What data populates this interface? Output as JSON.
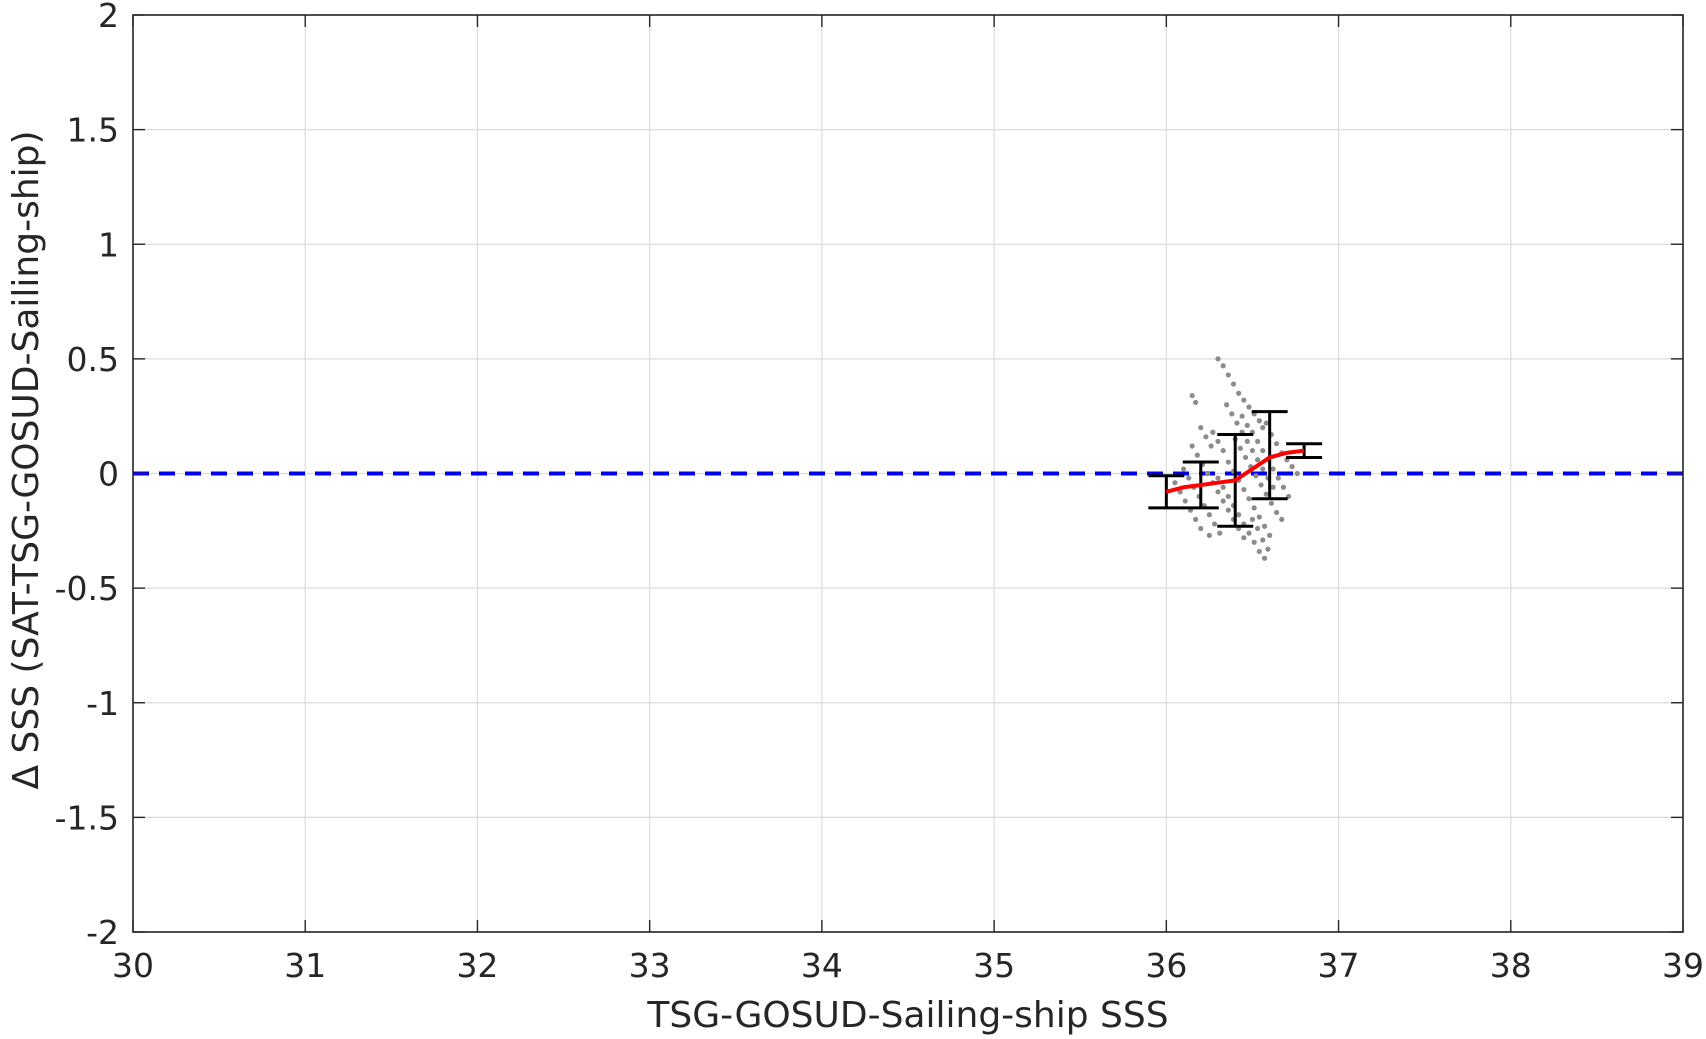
{
  "chart_data": {
    "type": "scatter",
    "xlabel": "TSG-GOSUD-Sailing-ship SSS",
    "ylabel": "Δ SSS (SAT-TSG-GOSUD-Sailing-ship)",
    "xlim": [
      30,
      39
    ],
    "ylim": [
      -2,
      2
    ],
    "xticks": [
      "30",
      "31",
      "32",
      "33",
      "34",
      "35",
      "36",
      "37",
      "38",
      "39"
    ],
    "yticks": [
      "2",
      "1.5",
      "1",
      "0.5",
      "0",
      "-0.5",
      "-1",
      "-1.5",
      "-2"
    ],
    "xtick_values": [
      30,
      31,
      32,
      33,
      34,
      35,
      36,
      37,
      38,
      39
    ],
    "ytick_values": [
      2,
      1.5,
      1,
      0.5,
      0,
      -0.5,
      -1,
      -1.5,
      -2
    ],
    "grid": true,
    "reference_line": {
      "y": 0,
      "style": "dashed",
      "color": "#0000ee"
    },
    "scatter_color": "#8c8c8c",
    "mean_line_color": "#ff0000",
    "errorbar_color": "#000000",
    "scatter_points": [
      {
        "x": 36.15,
        "y": 0.34
      },
      {
        "x": 36.17,
        "y": 0.31
      },
      {
        "x": 36.3,
        "y": 0.5
      },
      {
        "x": 36.33,
        "y": 0.47
      },
      {
        "x": 36.36,
        "y": 0.43
      },
      {
        "x": 36.39,
        "y": 0.39
      },
      {
        "x": 36.42,
        "y": 0.35
      },
      {
        "x": 36.45,
        "y": 0.32
      },
      {
        "x": 36.48,
        "y": 0.29
      },
      {
        "x": 36.51,
        "y": 0.26
      },
      {
        "x": 36.54,
        "y": 0.23
      },
      {
        "x": 36.56,
        "y": 0.2
      },
      {
        "x": 36.35,
        "y": 0.3
      },
      {
        "x": 36.38,
        "y": 0.26
      },
      {
        "x": 36.41,
        "y": 0.22
      },
      {
        "x": 36.44,
        "y": 0.18
      },
      {
        "x": 36.47,
        "y": 0.14
      },
      {
        "x": 36.5,
        "y": 0.1
      },
      {
        "x": 36.53,
        "y": 0.06
      },
      {
        "x": 36.56,
        "y": 0.02
      },
      {
        "x": 36.59,
        "y": -0.02
      },
      {
        "x": 36.62,
        "y": -0.06
      },
      {
        "x": 36.4,
        "y": 0.15
      },
      {
        "x": 36.43,
        "y": 0.11
      },
      {
        "x": 36.46,
        "y": 0.07
      },
      {
        "x": 36.49,
        "y": 0.03
      },
      {
        "x": 36.52,
        "y": -0.01
      },
      {
        "x": 36.55,
        "y": -0.05
      },
      {
        "x": 36.58,
        "y": -0.09
      },
      {
        "x": 36.61,
        "y": -0.13
      },
      {
        "x": 36.64,
        "y": -0.17
      },
      {
        "x": 36.67,
        "y": -0.2
      },
      {
        "x": 36.36,
        "y": 0.05
      },
      {
        "x": 36.39,
        "y": 0.01
      },
      {
        "x": 36.42,
        "y": -0.03
      },
      {
        "x": 36.45,
        "y": -0.07
      },
      {
        "x": 36.48,
        "y": -0.11
      },
      {
        "x": 36.51,
        "y": -0.15
      },
      {
        "x": 36.54,
        "y": -0.19
      },
      {
        "x": 36.57,
        "y": -0.23
      },
      {
        "x": 36.6,
        "y": -0.27
      },
      {
        "x": 36.3,
        "y": -0.02
      },
      {
        "x": 36.33,
        "y": -0.06
      },
      {
        "x": 36.36,
        "y": -0.1
      },
      {
        "x": 36.39,
        "y": -0.14
      },
      {
        "x": 36.42,
        "y": -0.18
      },
      {
        "x": 36.45,
        "y": -0.22
      },
      {
        "x": 36.48,
        "y": -0.26
      },
      {
        "x": 36.51,
        "y": -0.3
      },
      {
        "x": 36.54,
        "y": -0.34
      },
      {
        "x": 36.57,
        "y": -0.37
      },
      {
        "x": 36.15,
        "y": 0.12
      },
      {
        "x": 36.18,
        "y": 0.08
      },
      {
        "x": 36.21,
        "y": 0.04
      },
      {
        "x": 36.24,
        "y": 0.0
      },
      {
        "x": 36.27,
        "y": -0.04
      },
      {
        "x": 36.3,
        "y": -0.08
      },
      {
        "x": 36.33,
        "y": -0.12
      },
      {
        "x": 36.36,
        "y": -0.16
      },
      {
        "x": 36.39,
        "y": -0.2
      },
      {
        "x": 36.42,
        "y": -0.24
      },
      {
        "x": 36.45,
        "y": -0.28
      },
      {
        "x": 36.1,
        "y": 0.02
      },
      {
        "x": 36.13,
        "y": -0.02
      },
      {
        "x": 36.16,
        "y": -0.06
      },
      {
        "x": 36.19,
        "y": -0.1
      },
      {
        "x": 36.22,
        "y": -0.14
      },
      {
        "x": 36.25,
        "y": -0.18
      },
      {
        "x": 36.28,
        "y": -0.22
      },
      {
        "x": 36.31,
        "y": -0.26
      },
      {
        "x": 36.05,
        "y": -0.04
      },
      {
        "x": 36.08,
        "y": -0.08
      },
      {
        "x": 36.11,
        "y": -0.12
      },
      {
        "x": 36.14,
        "y": -0.16
      },
      {
        "x": 36.17,
        "y": -0.2
      },
      {
        "x": 36.2,
        "y": -0.24
      },
      {
        "x": 36.25,
        "y": -0.27
      },
      {
        "x": 36.5,
        "y": 0.18
      },
      {
        "x": 36.53,
        "y": 0.14
      },
      {
        "x": 36.56,
        "y": 0.1
      },
      {
        "x": 36.59,
        "y": 0.06
      },
      {
        "x": 36.62,
        "y": 0.02
      },
      {
        "x": 36.65,
        "y": -0.02
      },
      {
        "x": 36.68,
        "y": -0.06
      },
      {
        "x": 36.71,
        "y": -0.1
      },
      {
        "x": 36.58,
        "y": 0.22
      },
      {
        "x": 36.61,
        "y": 0.17
      },
      {
        "x": 36.64,
        "y": 0.13
      },
      {
        "x": 36.67,
        "y": 0.09
      },
      {
        "x": 36.7,
        "y": 0.06
      },
      {
        "x": 36.73,
        "y": 0.03
      },
      {
        "x": 36.76,
        "y": 0.0
      },
      {
        "x": 36.44,
        "y": 0.25
      },
      {
        "x": 36.47,
        "y": 0.21
      },
      {
        "x": 36.5,
        "y": -0.2
      },
      {
        "x": 36.53,
        "y": -0.24
      },
      {
        "x": 36.56,
        "y": -0.29
      },
      {
        "x": 36.59,
        "y": -0.33
      },
      {
        "x": 36.27,
        "y": 0.18
      },
      {
        "x": 36.3,
        "y": 0.14
      },
      {
        "x": 36.33,
        "y": 0.1
      },
      {
        "x": 36.2,
        "y": 0.2
      },
      {
        "x": 36.23,
        "y": 0.16
      },
      {
        "x": 36.26,
        "y": 0.12
      }
    ],
    "mean_line": {
      "x": [
        36.0,
        36.1,
        36.2,
        36.3,
        36.4,
        36.5,
        36.6,
        36.7,
        36.8
      ],
      "y": [
        -0.08,
        -0.06,
        -0.05,
        -0.04,
        -0.03,
        0.02,
        0.07,
        0.09,
        0.1
      ]
    },
    "error_bars": [
      {
        "x": 36.0,
        "low": -0.15,
        "high": -0.01
      },
      {
        "x": 36.2,
        "low": -0.15,
        "high": 0.05
      },
      {
        "x": 36.4,
        "low": -0.23,
        "high": 0.17
      },
      {
        "x": 36.6,
        "low": -0.11,
        "high": 0.27
      },
      {
        "x": 36.8,
        "low": 0.07,
        "high": 0.13
      }
    ]
  }
}
